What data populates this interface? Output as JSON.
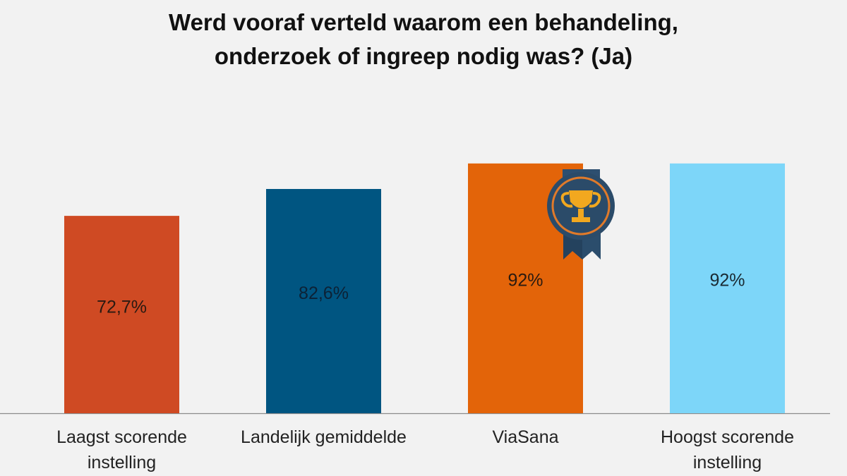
{
  "title_lines": [
    "Werd vooraf verteld waarom een behandeling,",
    "onderzoek of ingreep nodig was? (Ja)"
  ],
  "chart_data": {
    "type": "bar",
    "title": "Werd vooraf verteld waarom een behandeling, onderzoek of ingreep nodig was? (Ja)",
    "categories": [
      [
        "Laagst scorende",
        "instelling"
      ],
      [
        "Landelijk gemiddelde"
      ],
      [
        "ViaSana"
      ],
      [
        "Hoogst scorende",
        "instelling"
      ]
    ],
    "values": [
      72.7,
      82.6,
      92,
      92
    ],
    "value_labels": [
      "72,7%",
      "82,6%",
      "92%",
      "92%"
    ],
    "colors": [
      "#cf4a23",
      "#005581",
      "#e36409",
      "#7dd6f9"
    ],
    "label_colors": [
      "#2a1a12",
      "#0c2236",
      "#2a1a10",
      "#1a2a33"
    ],
    "unit": "%",
    "grid": false,
    "legend": "none",
    "ylim": [
      0,
      100
    ],
    "badge": {
      "category_index": 2,
      "icon": "trophy-icon"
    }
  }
}
